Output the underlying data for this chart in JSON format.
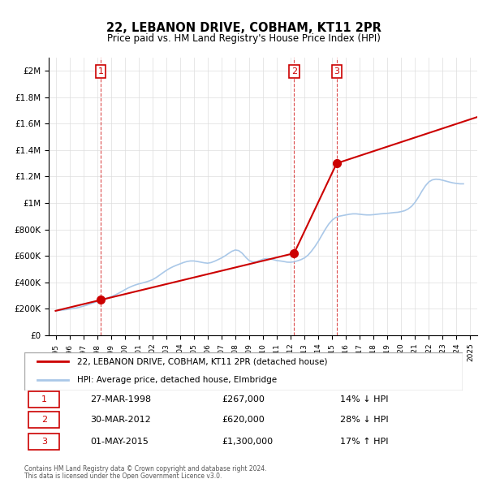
{
  "title": "22, LEBANON DRIVE, COBHAM, KT11 2PR",
  "subtitle": "Price paid vs. HM Land Registry's House Price Index (HPI)",
  "legend_line1": "22, LEBANON DRIVE, COBHAM, KT11 2PR (detached house)",
  "legend_line2": "HPI: Average price, detached house, Elmbridge",
  "footer_line1": "Contains HM Land Registry data © Crown copyright and database right 2024.",
  "footer_line2": "This data is licensed under the Open Government Licence v3.0.",
  "sale_color": "#cc0000",
  "hpi_color": "#aac8e8",
  "sale_line_color": "#cc0000",
  "hpi_line_color": "#aac8e8",
  "transactions": [
    {
      "num": 1,
      "date_x": 1998.25,
      "price": 267000,
      "label": "27-MAR-1998",
      "price_str": "£267,000",
      "pct": "14%",
      "dir": "↓"
    },
    {
      "num": 2,
      "date_x": 2012.25,
      "price": 620000,
      "label": "30-MAR-2012",
      "price_str": "£620,000",
      "pct": "28%",
      "dir": "↓"
    },
    {
      "num": 3,
      "date_x": 2015.33,
      "price": 1300000,
      "label": "01-MAY-2015",
      "price_str": "£1,300,000",
      "pct": "17%",
      "dir": "↑"
    }
  ],
  "ylim": [
    0,
    2100000
  ],
  "yticks": [
    0,
    200000,
    400000,
    600000,
    800000,
    1000000,
    1200000,
    1400000,
    1600000,
    1800000,
    2000000
  ],
  "ytick_labels": [
    "£0",
    "£200K",
    "£400K",
    "£600K",
    "£800K",
    "£1M",
    "£1.2M",
    "£1.4M",
    "£1.6M",
    "£1.8M",
    "£2M"
  ],
  "xlim_start": 1994.5,
  "xlim_end": 2025.5,
  "xticks": [
    1995,
    1996,
    1997,
    1998,
    1999,
    2000,
    2001,
    2002,
    2003,
    2004,
    2005,
    2006,
    2007,
    2008,
    2009,
    2010,
    2011,
    2012,
    2013,
    2014,
    2015,
    2016,
    2017,
    2018,
    2019,
    2020,
    2021,
    2022,
    2023,
    2024,
    2025
  ],
  "hpi_data": {
    "x": [
      1995,
      1995.25,
      1995.5,
      1995.75,
      1996,
      1996.25,
      1996.5,
      1996.75,
      1997,
      1997.25,
      1997.5,
      1997.75,
      1998,
      1998.25,
      1998.5,
      1998.75,
      1999,
      1999.25,
      1999.5,
      1999.75,
      2000,
      2000.25,
      2000.5,
      2000.75,
      2001,
      2001.25,
      2001.5,
      2001.75,
      2002,
      2002.25,
      2002.5,
      2002.75,
      2003,
      2003.25,
      2003.5,
      2003.75,
      2004,
      2004.25,
      2004.5,
      2004.75,
      2005,
      2005.25,
      2005.5,
      2005.75,
      2006,
      2006.25,
      2006.5,
      2006.75,
      2007,
      2007.25,
      2007.5,
      2007.75,
      2008,
      2008.25,
      2008.5,
      2008.75,
      2009,
      2009.25,
      2009.5,
      2009.75,
      2010,
      2010.25,
      2010.5,
      2010.75,
      2011,
      2011.25,
      2011.5,
      2011.75,
      2012,
      2012.25,
      2012.5,
      2012.75,
      2013,
      2013.25,
      2013.5,
      2013.75,
      2014,
      2014.25,
      2014.5,
      2014.75,
      2015,
      2015.25,
      2015.5,
      2015.75,
      2016,
      2016.25,
      2016.5,
      2016.75,
      2017,
      2017.25,
      2017.5,
      2017.75,
      2018,
      2018.25,
      2018.5,
      2018.75,
      2019,
      2019.25,
      2019.5,
      2019.75,
      2020,
      2020.25,
      2020.5,
      2020.75,
      2021,
      2021.25,
      2021.5,
      2021.75,
      2022,
      2022.25,
      2022.5,
      2022.75,
      2023,
      2023.25,
      2023.5,
      2023.75,
      2024,
      2024.25,
      2024.5
    ],
    "y": [
      185000,
      188000,
      191000,
      194000,
      198000,
      202000,
      207000,
      213000,
      220000,
      228000,
      237000,
      246000,
      255000,
      264000,
      273000,
      282000,
      291000,
      302000,
      315000,
      329000,
      344000,
      358000,
      370000,
      380000,
      388000,
      395000,
      402000,
      410000,
      420000,
      435000,
      453000,
      472000,
      490000,
      506000,
      519000,
      530000,
      540000,
      550000,
      558000,
      562000,
      562000,
      558000,
      553000,
      548000,
      545000,
      550000,
      560000,
      572000,
      585000,
      600000,
      618000,
      635000,
      645000,
      640000,
      620000,
      590000,
      565000,
      555000,
      555000,
      565000,
      575000,
      580000,
      578000,
      572000,
      565000,
      562000,
      558000,
      553000,
      552000,
      556000,
      563000,
      572000,
      585000,
      605000,
      635000,
      670000,
      710000,
      755000,
      800000,
      840000,
      870000,
      890000,
      900000,
      905000,
      910000,
      915000,
      918000,
      918000,
      915000,
      912000,
      910000,
      910000,
      912000,
      915000,
      918000,
      920000,
      922000,
      925000,
      928000,
      930000,
      935000,
      942000,
      955000,
      975000,
      1005000,
      1045000,
      1090000,
      1130000,
      1160000,
      1175000,
      1180000,
      1178000,
      1172000,
      1165000,
      1158000,
      1152000,
      1148000,
      1145000,
      1145000
    ]
  },
  "sale_data": {
    "x": [
      1995,
      1998.25,
      2012.25,
      2015.33,
      2025.5
    ],
    "y": [
      185000,
      267000,
      620000,
      1300000,
      1650000
    ],
    "segments": [
      {
        "x": [
          1995,
          1998.25
        ],
        "y": [
          185000,
          267000
        ]
      },
      {
        "x": [
          1998.25,
          2012.25
        ],
        "y": [
          267000,
          620000
        ]
      },
      {
        "x": [
          2012.25,
          2015.33
        ],
        "y": [
          620000,
          1300000
        ]
      },
      {
        "x": [
          2015.33,
          2025.5
        ],
        "y": [
          1300000,
          1650000
        ]
      }
    ]
  }
}
